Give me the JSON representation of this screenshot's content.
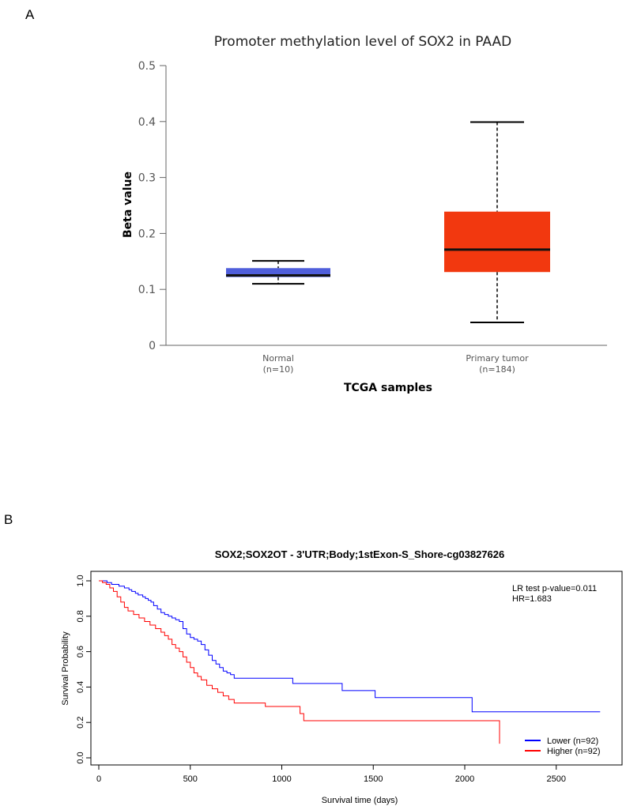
{
  "panels": {
    "a": "A",
    "b": "B"
  },
  "chart_data": [
    {
      "type": "box",
      "title": "Promoter methylation level of SOX2 in PAAD",
      "xlabel": "TCGA samples",
      "ylabel": "Beta value",
      "ylim": [
        0,
        0.5
      ],
      "yticks": [
        "0",
        "0.1",
        "0.2",
        "0.3",
        "0.4",
        "0.5"
      ],
      "grid": false,
      "groups": [
        {
          "name": "Normal",
          "n_label": "(n=10)",
          "color": "#4f5edb",
          "min": 0.11,
          "q1": 0.122,
          "median": 0.125,
          "q3": 0.138,
          "max": 0.151
        },
        {
          "name": "Primary tumor",
          "n_label": "(n=184)",
          "color": "#f2380f",
          "min": 0.041,
          "q1": 0.131,
          "median": 0.171,
          "q3": 0.239,
          "max": 0.399
        }
      ]
    },
    {
      "type": "line",
      "subtype": "kaplan-meier",
      "title": "SOX2;SOX2OT - 3'UTR;Body;1stExon-S_Shore-cg03827626",
      "xlabel": "Survival time (days)",
      "ylabel": "Survival Probability",
      "xlim": [
        0,
        2850
      ],
      "ylim": [
        0,
        1
      ],
      "xticks": [
        "0",
        "500",
        "1000",
        "1500",
        "2000",
        "2500"
      ],
      "yticks": [
        "0.0",
        "0.2",
        "0.4",
        "0.6",
        "0.8",
        "1.0"
      ],
      "annotations": [
        "LR test p-value=0.011",
        "HR=1.683"
      ],
      "legend_position": "bottom-right",
      "series": [
        {
          "name": "Lower (n=92)",
          "color": "#0000ff",
          "x": [
            0,
            45,
            70,
            110,
            140,
            165,
            180,
            200,
            215,
            240,
            255,
            270,
            285,
            300,
            320,
            340,
            360,
            380,
            400,
            420,
            440,
            460,
            480,
            500,
            520,
            540,
            560,
            580,
            600,
            620,
            640,
            660,
            680,
            700,
            720,
            740,
            1060,
            1330,
            1510,
            2040,
            2740
          ],
          "y": [
            1.0,
            0.99,
            0.98,
            0.97,
            0.96,
            0.95,
            0.94,
            0.93,
            0.92,
            0.91,
            0.9,
            0.89,
            0.88,
            0.86,
            0.84,
            0.82,
            0.81,
            0.8,
            0.79,
            0.78,
            0.77,
            0.73,
            0.7,
            0.68,
            0.67,
            0.66,
            0.64,
            0.61,
            0.58,
            0.55,
            0.53,
            0.51,
            0.49,
            0.48,
            0.47,
            0.45,
            0.42,
            0.38,
            0.34,
            0.26,
            0.26
          ]
        },
        {
          "name": "Higher (n=92)",
          "color": "#ff0000",
          "x": [
            0,
            20,
            40,
            60,
            80,
            100,
            120,
            140,
            160,
            190,
            220,
            250,
            280,
            310,
            340,
            360,
            380,
            400,
            420,
            440,
            460,
            480,
            500,
            520,
            540,
            560,
            590,
            620,
            650,
            680,
            710,
            740,
            910,
            1100,
            1120,
            2190,
            2190
          ],
          "y": [
            1.0,
            0.99,
            0.98,
            0.96,
            0.94,
            0.91,
            0.88,
            0.85,
            0.83,
            0.81,
            0.79,
            0.77,
            0.75,
            0.73,
            0.71,
            0.69,
            0.67,
            0.64,
            0.62,
            0.6,
            0.57,
            0.54,
            0.51,
            0.48,
            0.46,
            0.44,
            0.41,
            0.39,
            0.37,
            0.35,
            0.33,
            0.31,
            0.29,
            0.25,
            0.21,
            0.21,
            0.08
          ]
        }
      ]
    }
  ]
}
